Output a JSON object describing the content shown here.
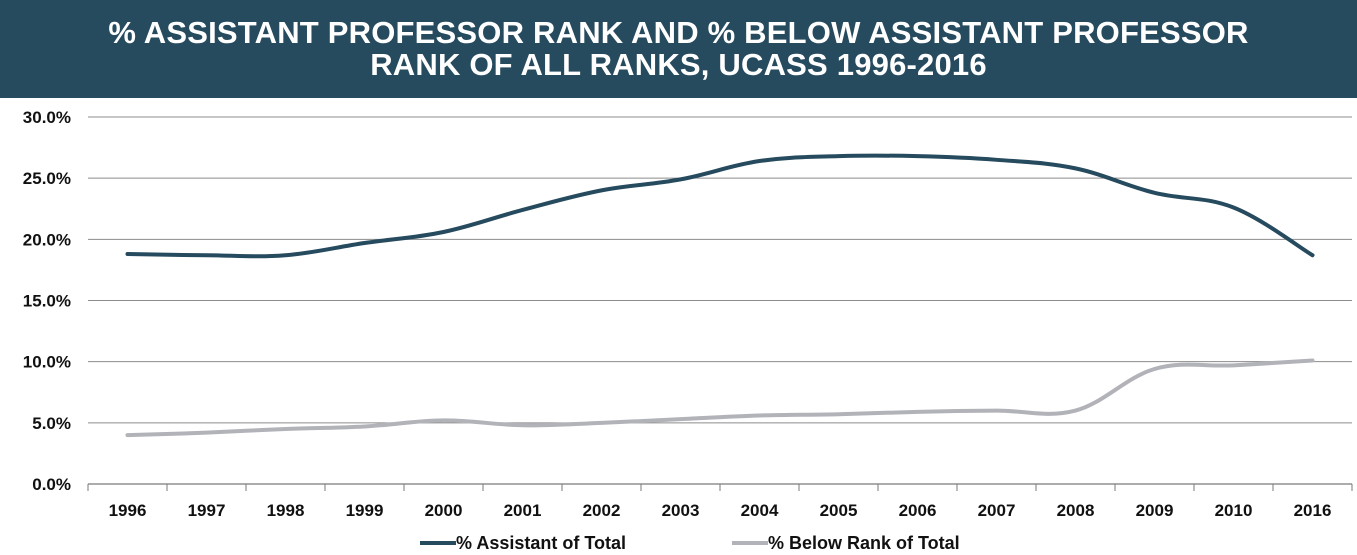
{
  "title_lines": [
    "% ASSISTANT PROFESSOR RANK AND % BELOW ASSISTANT PROFESSOR",
    "RANK OF ALL RANKS, UCASS 1996-2016"
  ],
  "chart_data": {
    "type": "line",
    "title": "% ASSISTANT PROFESSOR RANK AND % BELOW ASSISTANT PROFESSOR RANK OF ALL RANKS, UCASS 1996-2016",
    "categories": [
      "1996",
      "1997",
      "1998",
      "1999",
      "2000",
      "2001",
      "2002",
      "2003",
      "2004",
      "2005",
      "2006",
      "2007",
      "2008",
      "2009",
      "2010",
      "2016"
    ],
    "ylim": [
      0,
      30
    ],
    "yticks": [
      0,
      5,
      10,
      15,
      20,
      25,
      30
    ],
    "ytick_labels": [
      "0.0%",
      "5.0%",
      "10.0%",
      "15.0%",
      "20.0%",
      "25.0%",
      "30.0%"
    ],
    "grid": "horizontal",
    "legend_position": "bottom",
    "series": [
      {
        "name": "% Assistant of Total",
        "color": "#264a5e",
        "values": [
          18.8,
          18.7,
          18.7,
          19.7,
          20.6,
          22.4,
          24.0,
          24.9,
          26.4,
          26.8,
          26.8,
          26.5,
          25.8,
          23.8,
          22.6,
          18.7
        ]
      },
      {
        "name": "% Below Rank of Total",
        "color": "#b1b3b9",
        "values": [
          4.0,
          4.2,
          4.5,
          4.7,
          5.2,
          4.8,
          5.0,
          5.3,
          5.6,
          5.7,
          5.9,
          6.0,
          6.0,
          9.4,
          9.7,
          10.1
        ]
      }
    ]
  }
}
